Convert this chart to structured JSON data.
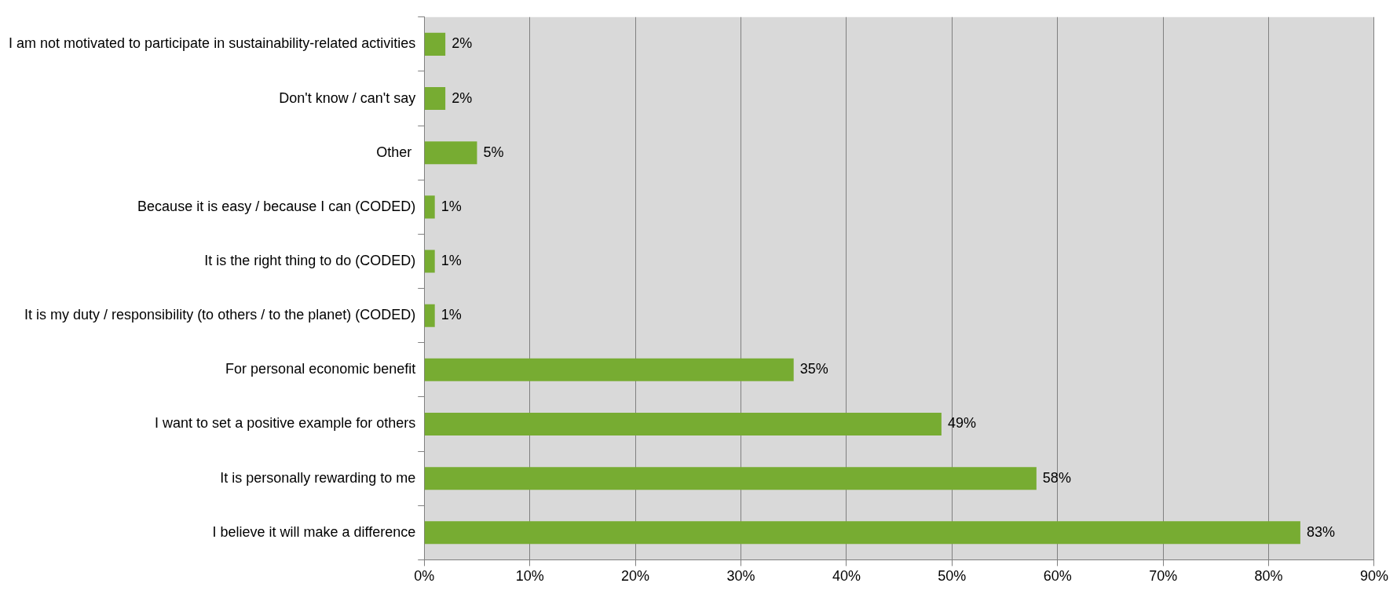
{
  "chart_data": {
    "type": "bar",
    "orientation": "horizontal",
    "categories": [
      "I am not motivated to participate in sustainability-related activities",
      "Don't know / can't say",
      "Other ",
      "Because it is easy / because I can (CODED)",
      "It is the right thing to do (CODED)",
      "It is my duty / responsibility (to others / to the planet) (CODED)",
      "For personal economic benefit",
      "I want to set a positive example for others",
      "It is personally rewarding to me",
      "I believe it will make a difference"
    ],
    "values": [
      2,
      2,
      5,
      1,
      1,
      1,
      35,
      49,
      58,
      83
    ],
    "value_labels": [
      "2%",
      "2%",
      "5%",
      "1%",
      "1%",
      "1%",
      "35%",
      "49%",
      "58%",
      "83%"
    ],
    "color": "#77ac32",
    "xlim": [
      0,
      90
    ],
    "xticks": [
      {
        "value": 0,
        "label": "0%"
      },
      {
        "value": 10,
        "label": "10%"
      },
      {
        "value": 20,
        "label": "20%"
      },
      {
        "value": 30,
        "label": "30%"
      },
      {
        "value": 40,
        "label": "40%"
      },
      {
        "value": 50,
        "label": "50%"
      },
      {
        "value": 60,
        "label": "60%"
      },
      {
        "value": 70,
        "label": "70%"
      },
      {
        "value": 80,
        "label": "80%"
      },
      {
        "value": 90,
        "label": "90%"
      }
    ],
    "grid": "x",
    "legend": false
  }
}
